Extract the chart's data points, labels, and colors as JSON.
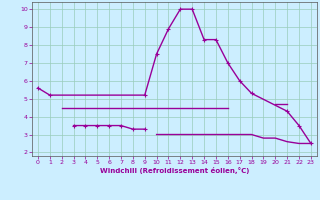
{
  "xlabel": "Windchill (Refroidissement éolien,°C)",
  "background_color": "#cceeff",
  "grid_color": "#99ccbb",
  "line_color": "#990099",
  "xlim": [
    -0.5,
    23.5
  ],
  "ylim": [
    1.8,
    10.4
  ],
  "yticks": [
    2,
    3,
    4,
    5,
    6,
    7,
    8,
    9,
    10
  ],
  "xticks": [
    0,
    1,
    2,
    3,
    4,
    5,
    6,
    7,
    8,
    9,
    10,
    11,
    12,
    13,
    14,
    15,
    16,
    17,
    18,
    19,
    20,
    21,
    22,
    23
  ],
  "series": [
    {
      "x": [
        0,
        1,
        9,
        10,
        11,
        12,
        13,
        14,
        15,
        16,
        17,
        18,
        21,
        22,
        23
      ],
      "y": [
        5.6,
        5.2,
        5.2,
        7.5,
        8.9,
        10.0,
        10.0,
        8.3,
        8.3,
        7.0,
        6.0,
        5.3,
        4.3,
        3.5,
        2.5
      ],
      "marker": true,
      "linewidth": 1.0
    },
    {
      "x": [
        2,
        3,
        4,
        5,
        6,
        7,
        8,
        9,
        10,
        11,
        12,
        13,
        14,
        15,
        16
      ],
      "y": [
        4.5,
        4.5,
        4.5,
        4.5,
        4.5,
        4.5,
        4.5,
        4.5,
        4.5,
        4.5,
        4.5,
        4.5,
        4.5,
        4.5,
        4.5
      ],
      "marker": false,
      "linewidth": 1.0
    },
    {
      "x": [
        20,
        21
      ],
      "y": [
        4.7,
        4.7
      ],
      "marker": false,
      "linewidth": 1.0
    },
    {
      "x": [
        3,
        4,
        5,
        6,
        7,
        8,
        9
      ],
      "y": [
        3.5,
        3.5,
        3.5,
        3.5,
        3.5,
        3.3,
        3.3
      ],
      "marker": true,
      "linewidth": 1.0
    },
    {
      "x": [
        10,
        11,
        12,
        13,
        14,
        15,
        16,
        17,
        18,
        19,
        20,
        21,
        22,
        23
      ],
      "y": [
        3.0,
        3.0,
        3.0,
        3.0,
        3.0,
        3.0,
        3.0,
        3.0,
        3.0,
        2.8,
        2.8,
        2.6,
        2.5,
        2.5
      ],
      "marker": false,
      "linewidth": 1.0
    }
  ]
}
